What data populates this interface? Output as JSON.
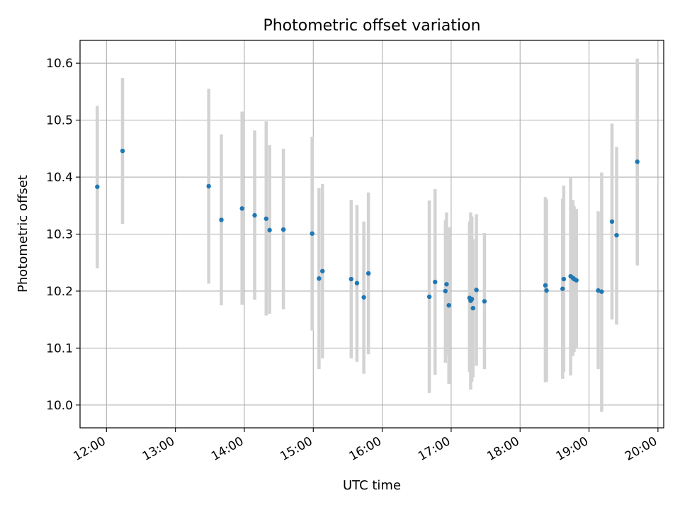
{
  "chart_data": {
    "type": "scatter",
    "title": "Photometric offset variation",
    "xlabel": "UTC time",
    "ylabel": "Photometric offset",
    "grid": true,
    "xlim": [
      "11:37",
      "20:05"
    ],
    "ylim": [
      9.96,
      10.64
    ],
    "x_ticks": [
      "12:00",
      "13:00",
      "14:00",
      "15:00",
      "16:00",
      "17:00",
      "18:00",
      "19:00",
      "20:00"
    ],
    "y_ticks": [
      10.0,
      10.1,
      10.2,
      10.3,
      10.4,
      10.5,
      10.6
    ],
    "colors": {
      "point": "#1f77b4",
      "errorbar": "#d3d3d3",
      "grid": "#b0b0b0"
    },
    "points": [
      {
        "t": "11:52",
        "y": 10.383,
        "lo": 10.24,
        "hi": 10.525
      },
      {
        "t": "12:14",
        "y": 10.446,
        "lo": 10.318,
        "hi": 10.574
      },
      {
        "t": "13:29",
        "y": 10.384,
        "lo": 10.213,
        "hi": 10.555
      },
      {
        "t": "13:40",
        "y": 10.325,
        "lo": 10.175,
        "hi": 10.475
      },
      {
        "t": "13:58",
        "y": 10.345,
        "lo": 10.176,
        "hi": 10.515
      },
      {
        "t": "14:09",
        "y": 10.333,
        "lo": 10.185,
        "hi": 10.482
      },
      {
        "t": "14:19",
        "y": 10.327,
        "lo": 10.157,
        "hi": 10.498
      },
      {
        "t": "14:22",
        "y": 10.307,
        "lo": 10.16,
        "hi": 10.456
      },
      {
        "t": "14:34",
        "y": 10.308,
        "lo": 10.168,
        "hi": 10.45
      },
      {
        "t": "14:59",
        "y": 10.301,
        "lo": 10.131,
        "hi": 10.471
      },
      {
        "t": "15:05",
        "y": 10.222,
        "lo": 10.063,
        "hi": 10.381
      },
      {
        "t": "15:08",
        "y": 10.235,
        "lo": 10.082,
        "hi": 10.388
      },
      {
        "t": "15:33",
        "y": 10.221,
        "lo": 10.082,
        "hi": 10.36
      },
      {
        "t": "15:38",
        "y": 10.214,
        "lo": 10.076,
        "hi": 10.351
      },
      {
        "t": "15:44",
        "y": 10.189,
        "lo": 10.055,
        "hi": 10.322
      },
      {
        "t": "15:48",
        "y": 10.231,
        "lo": 10.089,
        "hi": 10.373
      },
      {
        "t": "16:41",
        "y": 10.19,
        "lo": 10.021,
        "hi": 10.359
      },
      {
        "t": "16:46",
        "y": 10.216,
        "lo": 10.053,
        "hi": 10.379
      },
      {
        "t": "16:55",
        "y": 10.2,
        "lo": 10.074,
        "hi": 10.325
      },
      {
        "t": "16:56",
        "y": 10.212,
        "lo": 10.087,
        "hi": 10.338
      },
      {
        "t": "16:58",
        "y": 10.175,
        "lo": 10.037,
        "hi": 10.312
      },
      {
        "t": "17:16",
        "y": 10.188,
        "lo": 10.058,
        "hi": 10.322
      },
      {
        "t": "17:17",
        "y": 10.183,
        "lo": 10.027,
        "hi": 10.338
      },
      {
        "t": "17:18",
        "y": 10.186,
        "lo": 10.041,
        "hi": 10.331
      },
      {
        "t": "17:19",
        "y": 10.17,
        "lo": 10.049,
        "hi": 10.291
      },
      {
        "t": "17:22",
        "y": 10.202,
        "lo": 10.069,
        "hi": 10.335
      },
      {
        "t": "17:29",
        "y": 10.182,
        "lo": 10.063,
        "hi": 10.302
      },
      {
        "t": "18:22",
        "y": 10.21,
        "lo": 10.04,
        "hi": 10.365
      },
      {
        "t": "18:23",
        "y": 10.201,
        "lo": 10.041,
        "hi": 10.361
      },
      {
        "t": "18:37",
        "y": 10.204,
        "lo": 10.046,
        "hi": 10.362
      },
      {
        "t": "18:38",
        "y": 10.221,
        "lo": 10.058,
        "hi": 10.385
      },
      {
        "t": "18:44",
        "y": 10.226,
        "lo": 10.052,
        "hi": 10.399
      },
      {
        "t": "18:46",
        "y": 10.223,
        "lo": 10.086,
        "hi": 10.36
      },
      {
        "t": "18:47",
        "y": 10.221,
        "lo": 10.093,
        "hi": 10.349
      },
      {
        "t": "18:49",
        "y": 10.219,
        "lo": 10.1,
        "hi": 10.344
      },
      {
        "t": "19:08",
        "y": 10.201,
        "lo": 10.063,
        "hi": 10.34
      },
      {
        "t": "19:11",
        "y": 10.199,
        "lo": 9.988,
        "hi": 10.408
      },
      {
        "t": "19:20",
        "y": 10.322,
        "lo": 10.15,
        "hi": 10.494
      },
      {
        "t": "19:24",
        "y": 10.298,
        "lo": 10.141,
        "hi": 10.453
      },
      {
        "t": "19:42",
        "y": 10.427,
        "lo": 10.245,
        "hi": 10.608
      }
    ]
  }
}
